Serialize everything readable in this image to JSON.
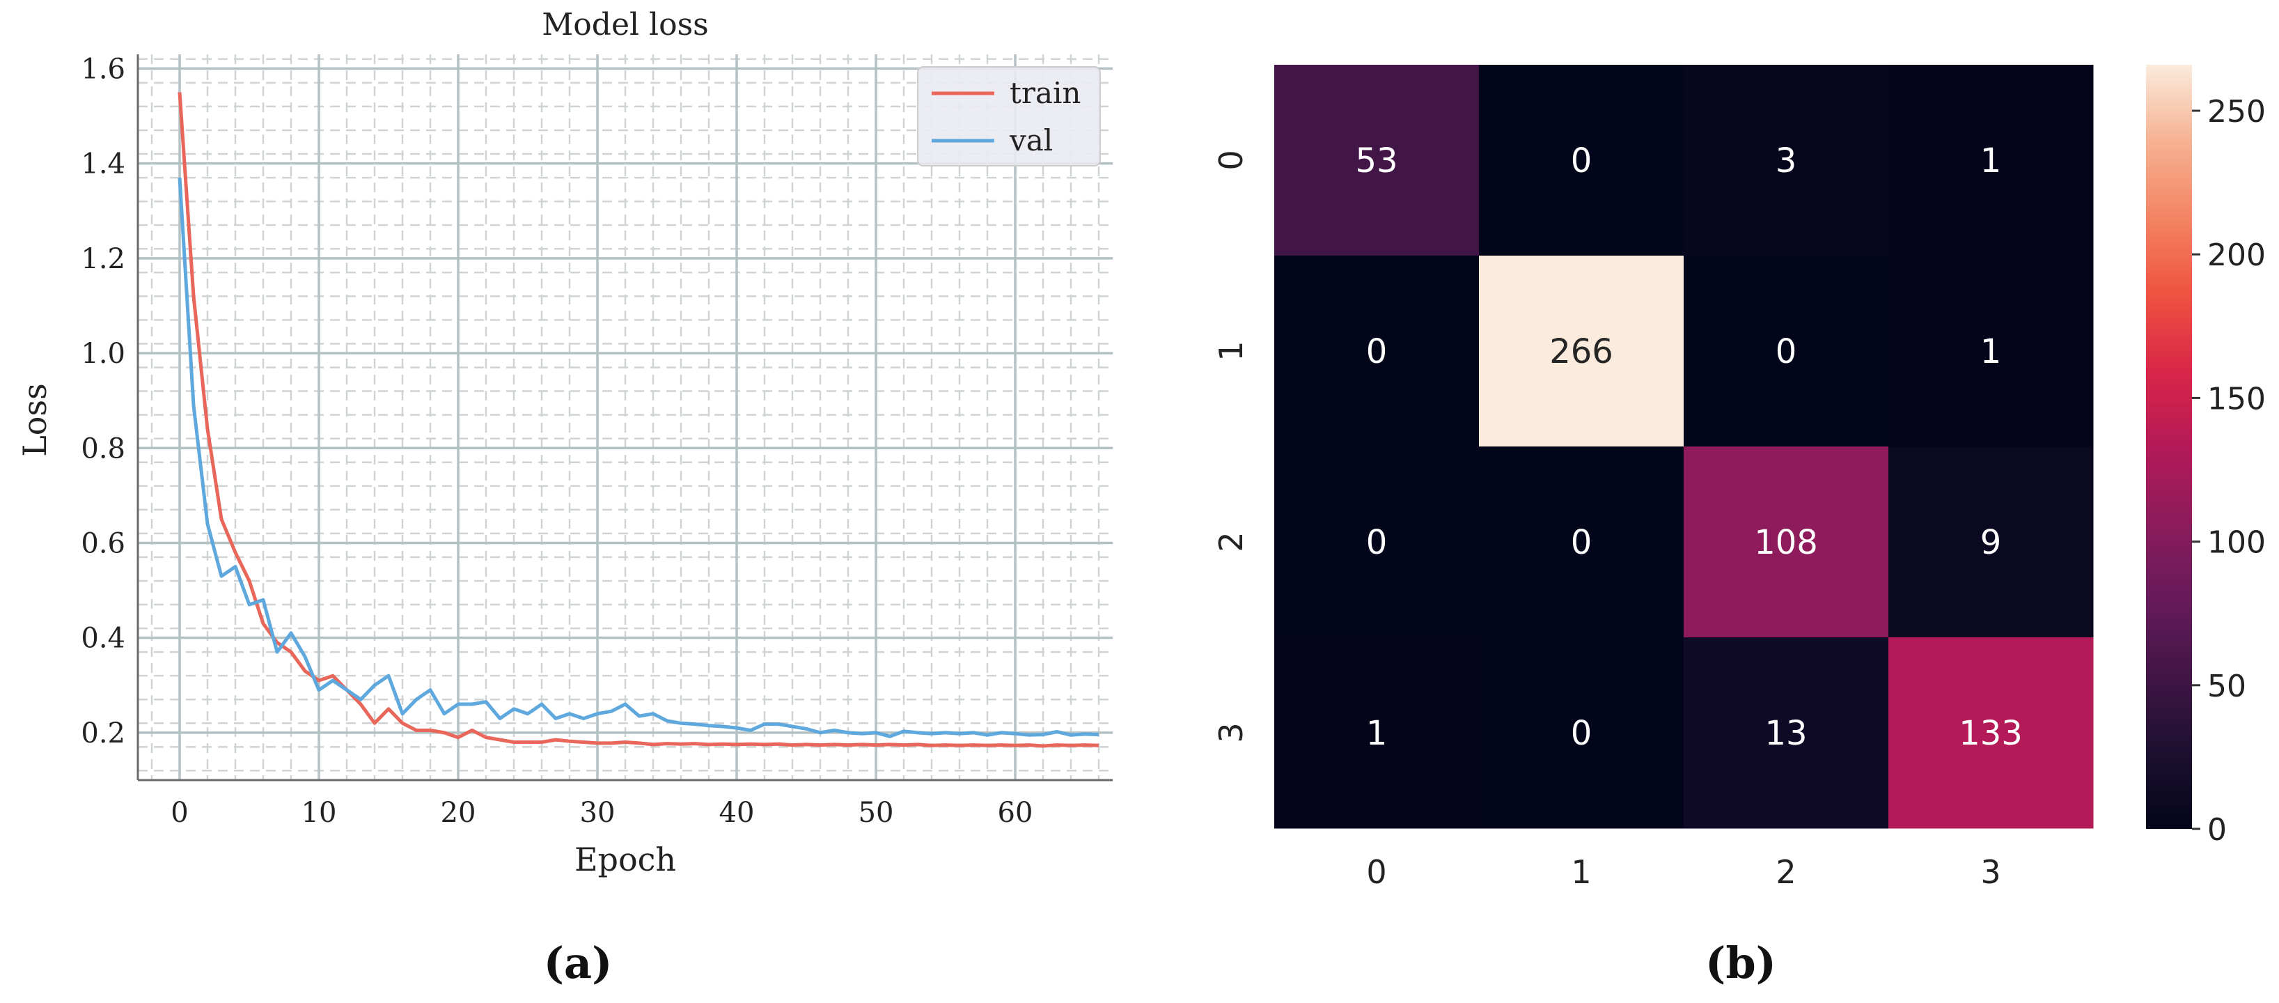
{
  "panel_labels": [
    "(a)",
    "(b)"
  ],
  "chart_data": [
    {
      "type": "line",
      "title": "Model loss",
      "xlabel": "Epoch",
      "ylabel": "Loss",
      "xlim": [
        -3,
        67
      ],
      "ylim": [
        0.1,
        1.63
      ],
      "x_ticks": [
        0,
        10,
        20,
        30,
        40,
        50,
        60
      ],
      "y_ticks": [
        0.2,
        0.4,
        0.6,
        0.8,
        1.0,
        1.2,
        1.4,
        1.6
      ],
      "x_tick_labels": [
        "0",
        "10",
        "20",
        "30",
        "40",
        "50",
        "60"
      ],
      "y_tick_labels": [
        "0.2",
        "0.4",
        "0.6",
        "0.8",
        "1.0",
        "1.2",
        "1.4",
        "1.6"
      ],
      "grid": true,
      "legend_position": "top-right",
      "series": [
        {
          "name": "train",
          "color": "#e8675a",
          "x": [
            0,
            1,
            2,
            3,
            4,
            5,
            6,
            7,
            8,
            9,
            10,
            11,
            12,
            13,
            14,
            15,
            16,
            17,
            18,
            19,
            20,
            21,
            22,
            23,
            24,
            25,
            26,
            27,
            28,
            29,
            30,
            31,
            32,
            33,
            34,
            35,
            36,
            37,
            38,
            39,
            40,
            41,
            42,
            43,
            44,
            45,
            46,
            47,
            48,
            49,
            50,
            51,
            52,
            53,
            54,
            55,
            56,
            57,
            58,
            59,
            60,
            61,
            62,
            63,
            64,
            65,
            66
          ],
          "values": [
            1.55,
            1.12,
            0.84,
            0.65,
            0.58,
            0.52,
            0.43,
            0.39,
            0.37,
            0.33,
            0.31,
            0.32,
            0.29,
            0.26,
            0.22,
            0.25,
            0.22,
            0.205,
            0.205,
            0.2,
            0.19,
            0.205,
            0.19,
            0.185,
            0.18,
            0.18,
            0.18,
            0.185,
            0.182,
            0.18,
            0.178,
            0.178,
            0.18,
            0.178,
            0.175,
            0.177,
            0.176,
            0.177,
            0.175,
            0.176,
            0.175,
            0.176,
            0.175,
            0.176,
            0.174,
            0.175,
            0.174,
            0.175,
            0.174,
            0.175,
            0.174,
            0.175,
            0.174,
            0.175,
            0.173,
            0.174,
            0.173,
            0.174,
            0.173,
            0.174,
            0.173,
            0.174,
            0.172,
            0.174,
            0.173,
            0.174,
            0.173
          ]
        },
        {
          "name": "val",
          "color": "#5fa8de",
          "x": [
            0,
            1,
            2,
            3,
            4,
            5,
            6,
            7,
            8,
            9,
            10,
            11,
            12,
            13,
            14,
            15,
            16,
            17,
            18,
            19,
            20,
            21,
            22,
            23,
            24,
            25,
            26,
            27,
            28,
            29,
            30,
            31,
            32,
            33,
            34,
            35,
            36,
            37,
            38,
            39,
            40,
            41,
            42,
            43,
            44,
            45,
            46,
            47,
            48,
            49,
            50,
            51,
            52,
            53,
            54,
            55,
            56,
            57,
            58,
            59,
            60,
            61,
            62,
            63,
            64,
            65,
            66
          ],
          "values": [
            1.37,
            0.89,
            0.64,
            0.53,
            0.55,
            0.47,
            0.48,
            0.37,
            0.41,
            0.36,
            0.29,
            0.31,
            0.29,
            0.27,
            0.3,
            0.32,
            0.24,
            0.27,
            0.29,
            0.24,
            0.26,
            0.26,
            0.265,
            0.23,
            0.25,
            0.24,
            0.26,
            0.23,
            0.24,
            0.23,
            0.24,
            0.245,
            0.26,
            0.235,
            0.24,
            0.225,
            0.22,
            0.218,
            0.215,
            0.213,
            0.21,
            0.205,
            0.218,
            0.218,
            0.213,
            0.208,
            0.2,
            0.205,
            0.2,
            0.198,
            0.2,
            0.192,
            0.203,
            0.2,
            0.198,
            0.2,
            0.198,
            0.2,
            0.195,
            0.2,
            0.198,
            0.195,
            0.196,
            0.202,
            0.195,
            0.197,
            0.196
          ]
        }
      ]
    },
    {
      "type": "heatmap",
      "row_tick_labels": [
        "0",
        "1",
        "2",
        "3"
      ],
      "col_tick_labels": [
        "0",
        "1",
        "2",
        "3"
      ],
      "matrix": [
        [
          53,
          0,
          3,
          1
        ],
        [
          0,
          266,
          0,
          1
        ],
        [
          0,
          0,
          108,
          9
        ],
        [
          1,
          0,
          13,
          133
        ]
      ],
      "colorbar_range": [
        0,
        266
      ],
      "colorbar_ticks": [
        0,
        50,
        100,
        150,
        200,
        250
      ],
      "colorbar_tick_labels": [
        "0",
        "50",
        "100",
        "150",
        "200",
        "250"
      ],
      "colormap": "rocket"
    }
  ]
}
